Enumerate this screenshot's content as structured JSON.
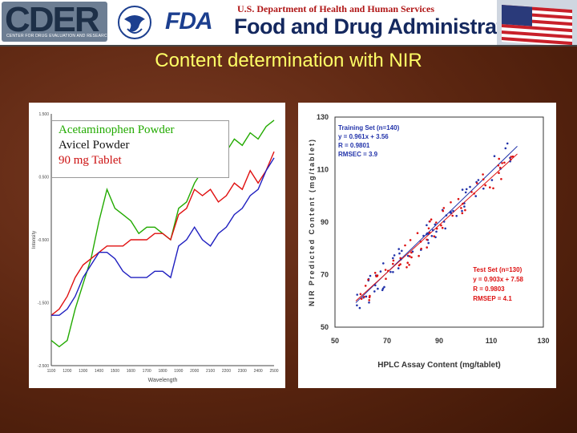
{
  "header": {
    "cder_logo": "CDER",
    "cder_subtitle": "CENTER FOR DRUG EVALUATION AND RESEARCH",
    "fda_mark": "FDA",
    "department": "U.S. Department of Health and Human Services",
    "agency": "Food and Drug Administration",
    "icons": [
      "hhs-eagle-icon",
      "us-flag-icon"
    ]
  },
  "slide": {
    "title": "Content determination with NIR"
  },
  "colors": {
    "title": "#ffff66",
    "acetaminophen": "#22aa00",
    "avicel": "#e01010",
    "tablet": "#2020c0",
    "background": "#5a2510"
  },
  "chart_data": [
    {
      "type": "line",
      "xlabel": "Wavelength",
      "ylabel": "Intensity",
      "xlim": [
        1100,
        2500
      ],
      "ylim": [
        -2.5,
        1.5
      ],
      "x_ticks": [
        "1100",
        "1200",
        "1300",
        "1400",
        "1500",
        "1600",
        "1700",
        "1800",
        "1900",
        "2000",
        "2100",
        "2200",
        "2300",
        "2400",
        "2500"
      ],
      "y_ticks": [
        "1.500",
        "0.500",
        "-0.500",
        "-1.500",
        "-2.500"
      ],
      "legend": [
        "Acetaminophen Powder",
        "Avicel Powder",
        "90 mg Tablet"
      ],
      "x": [
        1100,
        1150,
        1200,
        1250,
        1300,
        1350,
        1400,
        1450,
        1500,
        1550,
        1600,
        1650,
        1700,
        1750,
        1800,
        1850,
        1900,
        1950,
        2000,
        2050,
        2100,
        2150,
        2200,
        2250,
        2300,
        2350,
        2400,
        2450,
        2500
      ],
      "series": [
        {
          "name": "Acetaminophen Powder",
          "color": "#22aa00",
          "values": [
            -2.1,
            -2.2,
            -2.1,
            -1.6,
            -1.2,
            -0.8,
            -0.2,
            0.3,
            0.0,
            -0.1,
            -0.2,
            -0.4,
            -0.3,
            -0.3,
            -0.4,
            -0.5,
            0.0,
            0.1,
            0.4,
            0.6,
            0.8,
            1.0,
            0.9,
            1.1,
            1.0,
            1.2,
            1.1,
            1.3,
            1.4
          ]
        },
        {
          "name": "Avicel Powder",
          "color": "#e01010",
          "values": [
            -1.7,
            -1.6,
            -1.4,
            -1.1,
            -0.9,
            -0.8,
            -0.7,
            -0.6,
            -0.6,
            -0.6,
            -0.5,
            -0.5,
            -0.5,
            -0.4,
            -0.4,
            -0.5,
            -0.1,
            0.0,
            0.3,
            0.2,
            0.3,
            0.1,
            0.2,
            0.4,
            0.3,
            0.6,
            0.4,
            0.6,
            0.9
          ]
        },
        {
          "name": "90 mg Tablet",
          "color": "#2020c0",
          "values": [
            -1.7,
            -1.7,
            -1.6,
            -1.4,
            -1.1,
            -0.9,
            -0.7,
            -0.7,
            -0.8,
            -1.0,
            -1.1,
            -1.1,
            -1.1,
            -1.0,
            -1.0,
            -1.1,
            -0.6,
            -0.5,
            -0.3,
            -0.5,
            -0.6,
            -0.4,
            -0.3,
            -0.1,
            0.0,
            0.2,
            0.3,
            0.6,
            0.8
          ]
        }
      ]
    },
    {
      "type": "scatter",
      "xlabel": "HPLC Assay Content (mg/tablet)",
      "ylabel": "NIR Predicted Content (mg/tablet)",
      "xlim": [
        50,
        130
      ],
      "ylim": [
        50,
        130
      ],
      "x_ticks": [
        "50",
        "70",
        "90",
        "110",
        "130"
      ],
      "y_ticks": [
        "50",
        "70",
        "90",
        "110",
        "130"
      ],
      "training_set": {
        "label": "Training Set (n=140)",
        "equation": "y = 0.961x + 3.56",
        "r": "R = 0.9801",
        "rmsec": "RMSEC = 3.9",
        "color": "#2233aa",
        "slope": 0.961,
        "intercept": 3.56
      },
      "test_set": {
        "label": "Test Set (n=130)",
        "equation": "y = 0.903x + 7.58",
        "r": "R = 0.9803",
        "rmsep": "RMSEP = 4.1",
        "color": "#dd1111",
        "slope": 0.903,
        "intercept": 7.58
      },
      "x_range": [
        58,
        120
      ]
    }
  ]
}
